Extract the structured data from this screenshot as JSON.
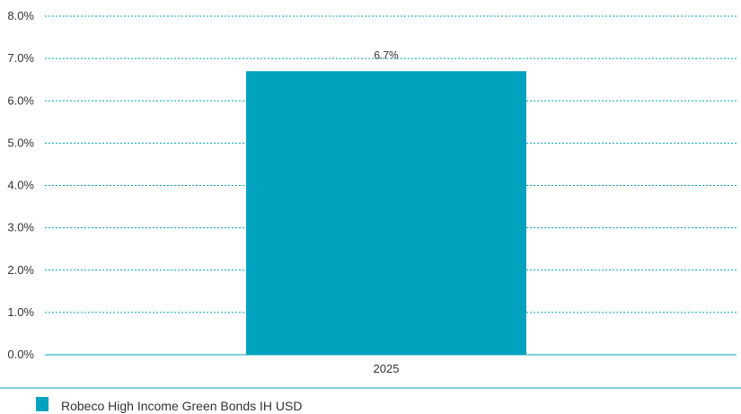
{
  "chart_data": {
    "type": "bar",
    "categories": [
      "2025"
    ],
    "series": [
      {
        "name": "Robeco High Income Green Bonds IH USD",
        "values": [
          6.7
        ],
        "data_labels": [
          "6.7%"
        ]
      }
    ],
    "title": "",
    "xlabel": "",
    "ylabel": "",
    "ylim": [
      0,
      8
    ],
    "yticks": [
      "0.0%",
      "1.0%",
      "2.0%",
      "3.0%",
      "4.0%",
      "5.0%",
      "6.0%",
      "7.0%",
      "8.0%"
    ],
    "grid": "horizontal dashed",
    "legend": "bottom-left",
    "colors": {
      "bar": "#00A2BE",
      "grid": "#00A2BE",
      "axis": "#00A2BE",
      "text": "#333333"
    }
  }
}
